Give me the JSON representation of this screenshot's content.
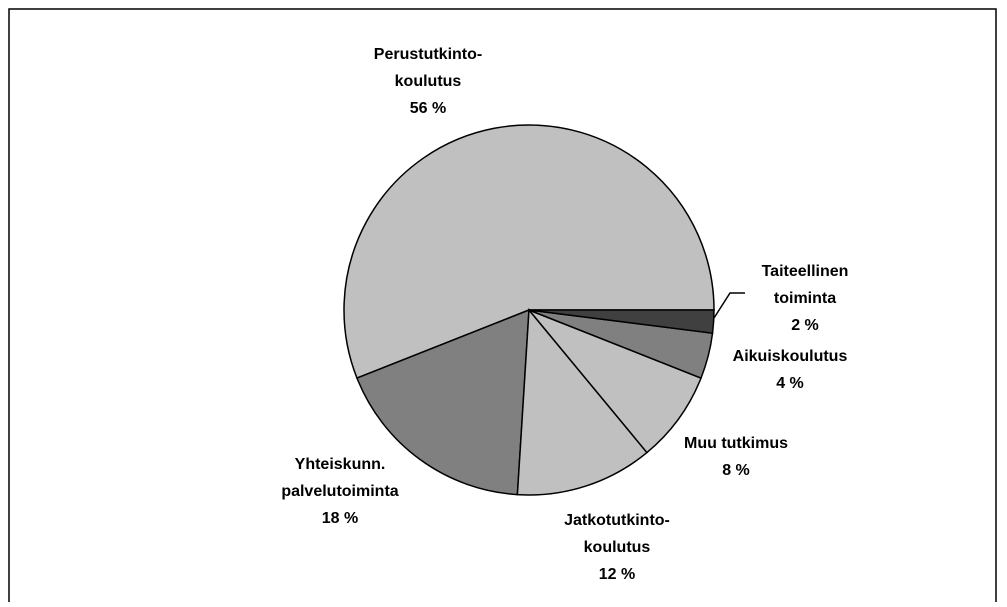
{
  "chart_data": {
    "type": "pie",
    "categories": [
      [
        "Perustutkinto-",
        "koulutus"
      ],
      [
        "Yhteiskunn.",
        "palvelutoiminta"
      ],
      [
        "Jatkotutkinto-",
        "koulutus"
      ],
      [
        "Muu tutkimus"
      ],
      [
        "Aikuiskoulutus"
      ],
      [
        "Taiteellinen",
        "toiminta"
      ]
    ],
    "values": [
      56,
      18,
      12,
      8,
      4,
      2
    ],
    "value_labels": [
      "56 %",
      "18 %",
      "12 %",
      "8 %",
      "4 %",
      "2 %"
    ],
    "colors": [
      "#c0c0c0",
      "#808080",
      "#c0c0c0",
      "#c0c0c0",
      "#808080",
      "#404040"
    ]
  }
}
